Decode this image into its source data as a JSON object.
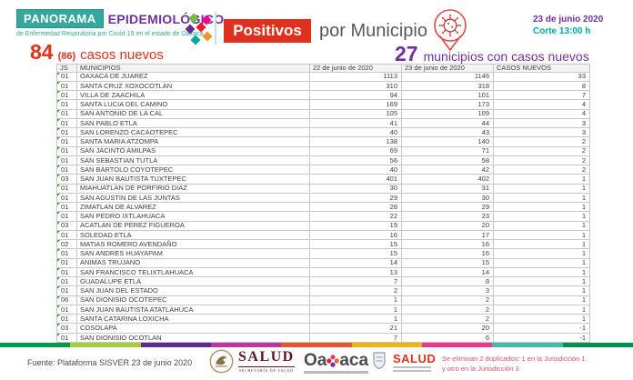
{
  "header": {
    "brand": {
      "panorama": "PANORAMA",
      "epidemiologico": "EPIDEMIOLÓGICO",
      "subtitle": "de Enfermedad Respiratoria por Covid-19 en el estado de Oaxaca"
    },
    "title": {
      "positivos": "Positivos",
      "por_municipio": "por Municipio"
    },
    "date": "23 de junio 2020",
    "cutoff": "Corte 13:00 h"
  },
  "stats": {
    "new_cases": "84",
    "new_cases_secondary": "(86)",
    "new_cases_label": "casos nuevos",
    "municipalities_count": "27",
    "municipalities_label": "municipios con casos nuevos"
  },
  "table": {
    "columns": [
      "JS",
      "MUNICIPIOS",
      "22 de junio de 2020",
      "23 de junio de 2020",
      "CASOS NUEVOS"
    ],
    "rows": [
      [
        "01",
        "OAXACA DE JUAREZ",
        "1113",
        "1146",
        "33"
      ],
      [
        "01",
        "SANTA CRUZ XOXOCOTLAN",
        "310",
        "318",
        "8"
      ],
      [
        "01",
        "VILLA DE ZAACHILA",
        "94",
        "101",
        "7"
      ],
      [
        "01",
        "SANTA LUCIA DEL CAMINO",
        "169",
        "173",
        "4"
      ],
      [
        "01",
        "SAN ANTONIO DE LA CAL",
        "105",
        "109",
        "4"
      ],
      [
        "01",
        "SAN PABLO ETLA",
        "41",
        "44",
        "3"
      ],
      [
        "01",
        "SAN LORENZO CACAOTEPEC",
        "40",
        "43",
        "3"
      ],
      [
        "01",
        "SANTA MARIA ATZOMPA",
        "138",
        "140",
        "2"
      ],
      [
        "01",
        "SAN JACINTO AMILPAS",
        "69",
        "71",
        "2"
      ],
      [
        "01",
        "SAN SEBASTIAN TUTLA",
        "56",
        "58",
        "2"
      ],
      [
        "01",
        "SAN BARTOLO COYOTEPEC",
        "40",
        "42",
        "2"
      ],
      [
        "03",
        "SAN JUAN BAUTISTA TUXTEPEC",
        "401",
        "402",
        "1"
      ],
      [
        "01",
        "MIAHUATLAN DE PORFIRIO DIAZ",
        "30",
        "31",
        "1"
      ],
      [
        "01",
        "SAN AGUSTIN DE LAS JUNTAS",
        "29",
        "30",
        "1"
      ],
      [
        "01",
        "ZIMATLAN DE ALVAREZ",
        "28",
        "29",
        "1"
      ],
      [
        "01",
        "SAN PEDRO IXTLAHUACA",
        "22",
        "23",
        "1"
      ],
      [
        "03",
        "ACATLAN DE PEREZ FIGUEROA",
        "19",
        "20",
        "1"
      ],
      [
        "01",
        "SOLEDAD ETLA",
        "16",
        "17",
        "1"
      ],
      [
        "02",
        "MATIAS ROMERO AVENDAÑO",
        "15",
        "16",
        "1"
      ],
      [
        "01",
        "SAN ANDRES HUAYAPAM",
        "15",
        "16",
        "1"
      ],
      [
        "01",
        "ANIMAS TRUJANO",
        "14",
        "15",
        "1"
      ],
      [
        "01",
        "SAN FRANCISCO TELIXTLAHUACA",
        "13",
        "14",
        "1"
      ],
      [
        "01",
        "GUADALUPE ETLA",
        "7",
        "8",
        "1"
      ],
      [
        "01",
        "SAN JUAN DEL ESTADO",
        "2",
        "3",
        "1"
      ],
      [
        "06",
        "SAN DIONISIO OCOTEPEC",
        "1",
        "2",
        "1"
      ],
      [
        "01",
        "SAN JUAN BAUTISTA ATATLAHUCA",
        "1",
        "2",
        "1"
      ],
      [
        "01",
        "SANTA CATARINA LOXICHA",
        "1",
        "2",
        "1"
      ],
      [
        "03",
        "COSOLAPA",
        "21",
        "20",
        "-1"
      ],
      [
        "01",
        "SAN DIONISIO OCOTLAN",
        "7",
        "6",
        "-1"
      ]
    ]
  },
  "footer": {
    "source": "Fuente: Plataforma SISVER 23 de junio 2020",
    "salud_federal": {
      "wordmark": "SALUD",
      "caption": "SECRETARÍA DE SALUD"
    },
    "oaxaca_wordmark_left": "Oa",
    "oaxaca_wordmark_right": "aca",
    "salud_oaxaca_wordmark": "SALUD",
    "note_line1": "Se eliminan 2 duplicados: 1 en la Jurisdicción 1",
    "note_line2": "y otro en la Jurisdicción 3"
  },
  "icons": {
    "brand_mark": "diamond-cluster-icon",
    "location": "map-pin-virus-icon",
    "eagle": "eagle-seal-icon",
    "oaxaca_flower": "flower-glyph-icon",
    "shield": "state-shield-icon"
  },
  "colors": {
    "teal": "#35a79c",
    "purple": "#7030a0",
    "red": "#e0301e",
    "title_gray": "#595959",
    "note_pink": "#e0506a",
    "stripe": [
      "#009a4e",
      "#a6ce39",
      "#5c2d91",
      "#b5399e",
      "#e8562d",
      "#efb410",
      "#e8388f",
      "#46b8aa",
      "#008f4c"
    ]
  }
}
